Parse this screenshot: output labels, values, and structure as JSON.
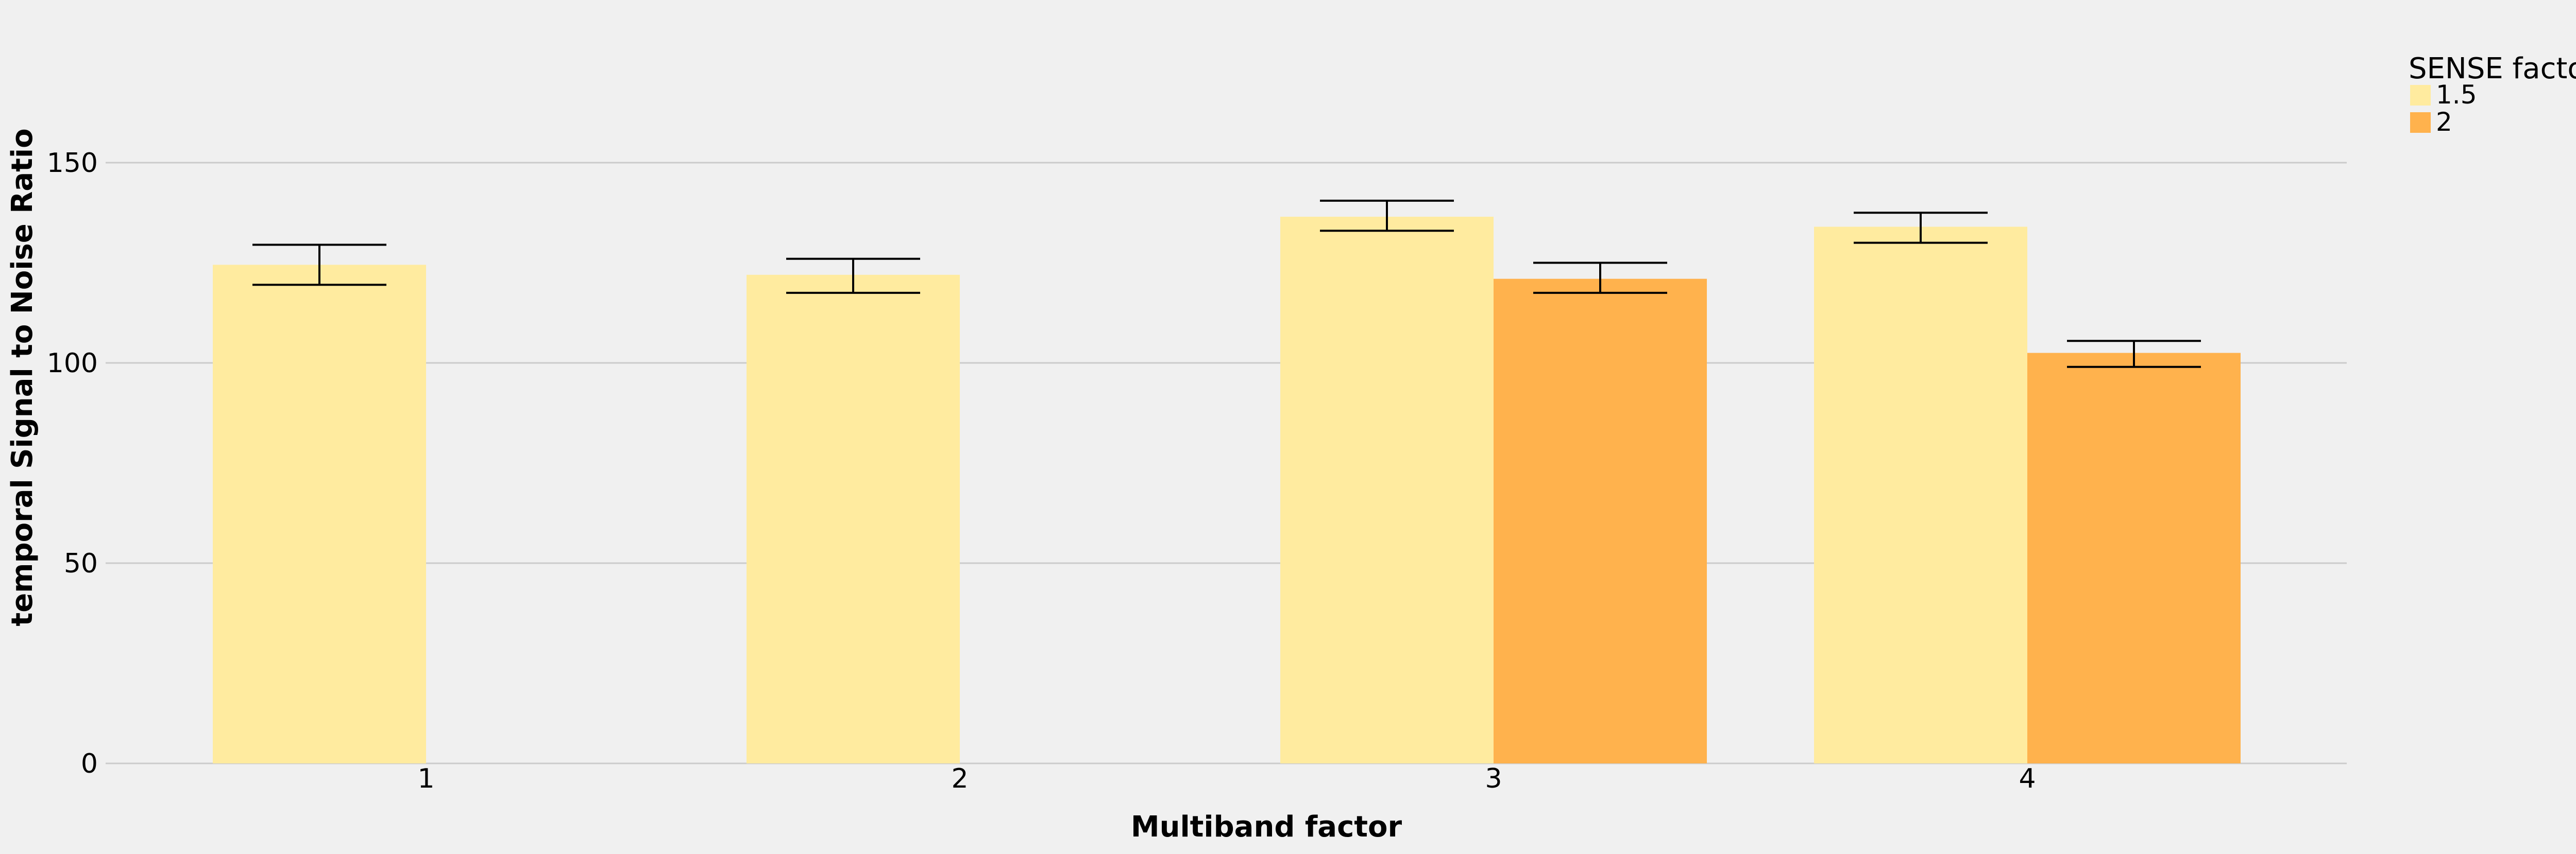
{
  "chart_data": {
    "type": "bar",
    "categories": [
      "1",
      "2",
      "3",
      "4"
    ],
    "series": [
      {
        "name": "1.5",
        "color": "#ffeb9f",
        "values": [
          124.5,
          122,
          136.5,
          134
        ],
        "error": [
          [
            119.5,
            129.5
          ],
          [
            117.5,
            126
          ],
          [
            133,
            140.5
          ],
          [
            130,
            137.5
          ]
        ]
      },
      {
        "name": "2",
        "color": "#ffb24d",
        "values": [
          null,
          null,
          121,
          102.5
        ],
        "error": [
          null,
          null,
          [
            117.5,
            125
          ],
          [
            99,
            105.5
          ]
        ]
      }
    ],
    "title": "",
    "xlabel": "Multiband factor",
    "ylabel": "temporal Signal to Noise Ratio",
    "ylim": [
      0,
      180
    ],
    "yticks": [
      0,
      50,
      100,
      150
    ],
    "grid": true,
    "legend": {
      "title": "SENSE factor",
      "placement": "top-right, outside plot"
    }
  }
}
